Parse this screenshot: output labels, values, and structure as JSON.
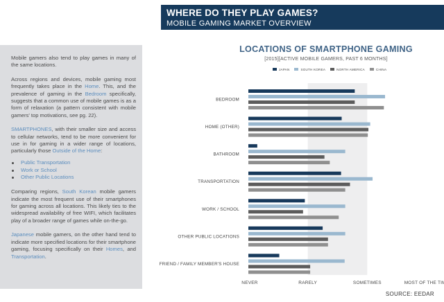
{
  "header": {
    "title": "WHERE DO THEY PLAY GAMES?",
    "subtitle": "MOBILE GAMING MARKET OVERVIEW"
  },
  "sidebar": {
    "p1": "Mobile gamers also tend to play games in many of the same locations.",
    "p2_a": "Across regions and devices, mobile gaming most frequently takes place in the ",
    "p2_home": "Home",
    "p2_b": ". This, and the prevalence of gaming in the ",
    "p2_bedroom": "Bedroom",
    "p2_c": " specifically, suggests that a common use of mobile games is as a form of relaxation (a pattern consistent with mobile gamers' top motivations, see pg. 22).",
    "p3_smart": "SMARTPHONES",
    "p3_a": ", with their smaller size and access to cellular networks, tend to be more convenient for use in for gaming in a wider range of locations, particularly those ",
    "p3_out": "Outside of the Home",
    "p3_b": ":",
    "bullets": [
      "Public Transportation",
      "Work or School",
      "Other Public Locations"
    ],
    "p4_a": "Comparing regions, ",
    "p4_sk": "South Korean",
    "p4_b": " mobile gamers indicate the most frequent use of their smartphones for gaming across all locations. This likely ties to the widespread availability of free WIFI, which facilitates play of a broader range of games while on-the-go.",
    "p5_jp": "Japanese",
    "p5_a": " mobile gamers, on the other hand tend to indicate more specified locations for their smartphone gaming, focusing specifically on their ",
    "p5_homes": "Homes",
    "p5_b": ", and ",
    "p5_trans": "Transportation",
    "p5_c": "."
  },
  "source": "SOURCE: EEDAR",
  "chart_data": {
    "type": "bar",
    "orientation": "horizontal",
    "title": "LOCATIONS OF SMARTPHONE GAMING",
    "subtitle": "[2015][ACTIVE MOBILE GAMERS, PAST 6 MONTHS]",
    "categories": [
      "BEDROOM",
      "HOME (OTHER)",
      "BATHROOM",
      "TRANSPORTATION",
      "WORK / SCHOOL",
      "OTHER PUBLIC LOCATIONS",
      "FRIEND / FAMILY MEMBER'S HOUSE"
    ],
    "x_ticks": [
      "NEVER",
      "RARELY",
      "SOMETIMES",
      "MOST OF THE TIME"
    ],
    "xlim": [
      0,
      3
    ],
    "grid": "alternating shaded bands",
    "legend_position": "top",
    "series": [
      {
        "name": "JAPAN",
        "color": "#17395b",
        "values": [
          1.79,
          1.57,
          0.15,
          1.56,
          0.95,
          1.25,
          0.52
        ]
      },
      {
        "name": "SOUTH KOREA",
        "color": "#9ab8cf",
        "values": [
          2.3,
          2.05,
          1.63,
          2.09,
          1.63,
          1.63,
          1.62
        ]
      },
      {
        "name": "NORTH AMERICA",
        "color": "#5c5c5c",
        "values": [
          1.79,
          2.02,
          1.28,
          1.71,
          0.92,
          1.34,
          1.04
        ]
      },
      {
        "name": "CHINA",
        "color": "#8f8f8f",
        "values": [
          2.28,
          2.01,
          1.37,
          1.63,
          1.52,
          1.34,
          1.04
        ]
      }
    ]
  }
}
